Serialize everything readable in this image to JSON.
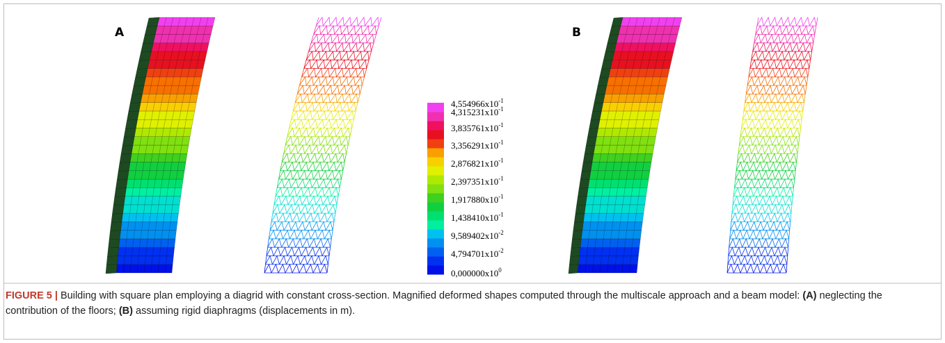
{
  "panels": {
    "a": "A",
    "b": "B"
  },
  "legend": [
    {
      "mantissa": "4,554966x10",
      "exponent": "-1"
    },
    {
      "mantissa": "4,315231x10",
      "exponent": "-1"
    },
    {
      "mantissa": "3,835761x10",
      "exponent": "-1"
    },
    {
      "mantissa": "3,356291x10",
      "exponent": "-1"
    },
    {
      "mantissa": "2,876821x10",
      "exponent": "-1"
    },
    {
      "mantissa": "2,397351x10",
      "exponent": "-1"
    },
    {
      "mantissa": "1,917880x10",
      "exponent": "-1"
    },
    {
      "mantissa": "1,438410x10",
      "exponent": "-1"
    },
    {
      "mantissa": "9,589402x10",
      "exponent": "-2"
    },
    {
      "mantissa": "4,794701x10",
      "exponent": "-2"
    },
    {
      "mantissa": "0,000000x10",
      "exponent": "0"
    }
  ],
  "caption": {
    "label": "FIGURE 5 |",
    "text": "Building with square plan employing a diagrid with constant cross-section. Magnified deformed shapes computed through the multiscale approach and a beam model:",
    "a": "(A)",
    "a_text": "neglecting the contribution of the floors;",
    "b": "(B)",
    "b_text": "assuming rigid diaphragms (displacements in m)."
  }
}
